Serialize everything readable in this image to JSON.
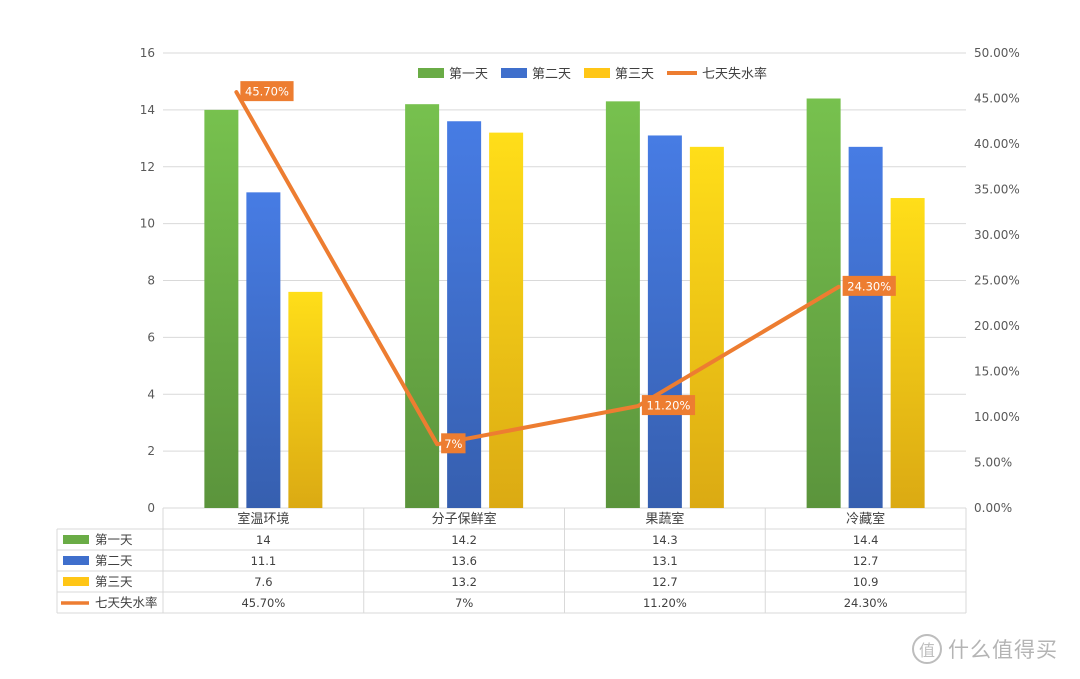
{
  "chart_data": {
    "type": "bar",
    "combo": "clustered-bar-with-line-on-secondary-axis",
    "categories": [
      "室温环境",
      "分子保鲜室",
      "果蔬室",
      "冷藏室"
    ],
    "series": [
      {
        "name": "第一天",
        "type": "bar",
        "axis": "left",
        "color": "#6aac46",
        "values": [
          14,
          14.2,
          14.3,
          14.4
        ],
        "display": [
          "14",
          "14.2",
          "14.3",
          "14.4"
        ]
      },
      {
        "name": "第二天",
        "type": "bar",
        "axis": "left",
        "color": "#3f6fcc",
        "values": [
          11.1,
          13.6,
          13.1,
          12.7
        ],
        "display": [
          "11.1",
          "13.6",
          "13.1",
          "12.7"
        ]
      },
      {
        "name": "第三天",
        "type": "bar",
        "axis": "left",
        "color": "#ffc616",
        "values": [
          7.6,
          13.2,
          12.7,
          10.9
        ],
        "display": [
          "7.6",
          "13.2",
          "12.7",
          "10.9"
        ]
      },
      {
        "name": "七天失水率",
        "type": "line",
        "axis": "right",
        "color": "#ed7d31",
        "values": [
          45.7,
          7,
          11.2,
          24.3
        ],
        "display": [
          "45.70%",
          "7%",
          "11.20%",
          "24.30%"
        ]
      }
    ],
    "y_left": {
      "min": 0,
      "max": 16,
      "ticks": [
        "0",
        "2",
        "4",
        "6",
        "8",
        "10",
        "12",
        "14",
        "16"
      ]
    },
    "y_right": {
      "min": 0,
      "max": 50,
      "ticks": [
        "0.00%",
        "5.00%",
        "10.00%",
        "15.00%",
        "20.00%",
        "25.00%",
        "30.00%",
        "35.00%",
        "40.00%",
        "45.00%",
        "50.00%"
      ]
    },
    "grid": true,
    "legend_position": "top",
    "data_table": true,
    "title": "",
    "xlabel": "",
    "ylabel": ""
  },
  "watermark": {
    "symbol": "值",
    "text": "什么值得买"
  }
}
